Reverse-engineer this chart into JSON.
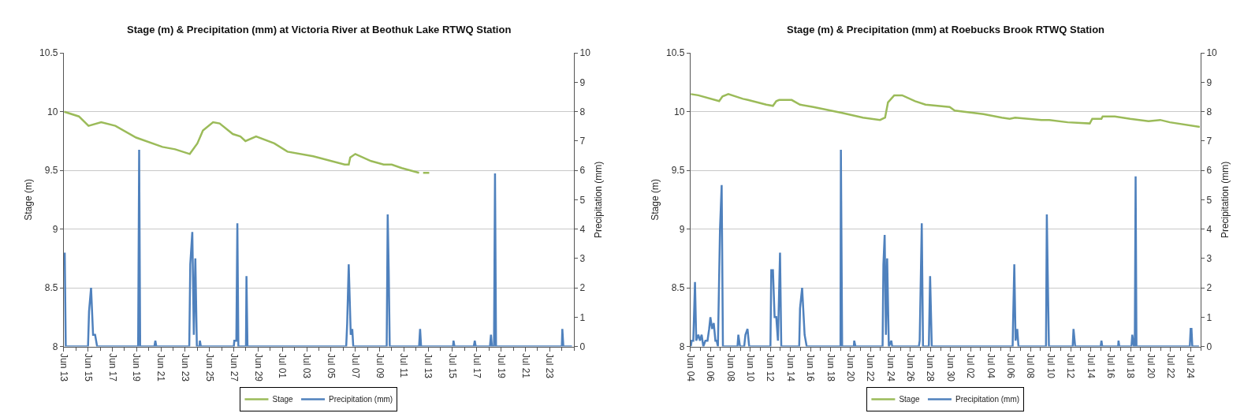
{
  "chart_data": [
    {
      "type": "line",
      "title": "Stage (m) & Precipitation (mm) at Victoria River at Beothuk Lake RTWQ Station",
      "ylabel": "Stage (m)",
      "y2label": "Precipitation (mm)",
      "xlim": [
        "--06-13",
        "--07-25"
      ],
      "xticks": [
        {
          "value": "--06-13",
          "label": "Jun 13"
        },
        {
          "value": "--06-15",
          "label": "Jun 15"
        },
        {
          "value": "--06-17",
          "label": "Jun 17"
        },
        {
          "value": "--06-19",
          "label": "Jun 19"
        },
        {
          "value": "--06-21",
          "label": "Jun 21"
        },
        {
          "value": "--06-23",
          "label": "Jun 23"
        },
        {
          "value": "--06-25",
          "label": "Jun 25"
        },
        {
          "value": "--06-27",
          "label": "Jun 27"
        },
        {
          "value": "--06-29",
          "label": "Jun 29"
        },
        {
          "value": "--07-01",
          "label": "Jul 01"
        },
        {
          "value": "--07-03",
          "label": "Jul 03"
        },
        {
          "value": "--07-05",
          "label": "Jul 05"
        },
        {
          "value": "--07-07",
          "label": "Jul 07"
        },
        {
          "value": "--07-09",
          "label": "Jul 09"
        },
        {
          "value": "--07-11",
          "label": "Jul 11"
        },
        {
          "value": "--07-13",
          "label": "Jul 13"
        },
        {
          "value": "--07-15",
          "label": "Jul 15"
        },
        {
          "value": "--07-17",
          "label": "Jul 17"
        },
        {
          "value": "--07-19",
          "label": "Jul 19"
        },
        {
          "value": "--07-21",
          "label": "Jul 21"
        },
        {
          "value": "--07-23",
          "label": "Jul 23"
        }
      ],
      "ylim": [
        8,
        10.5
      ],
      "yticks": [
        8,
        8.5,
        9,
        9.5,
        10,
        10.5
      ],
      "y2lim": [
        0,
        10
      ],
      "y2ticks": [
        0,
        1,
        2,
        3,
        4,
        5,
        6,
        7,
        8,
        9,
        10
      ],
      "grid": "y",
      "legend": "bottom",
      "series": [
        {
          "name": "Stage",
          "color": "#9bbb59",
          "x": [
            "--06-13T01:00",
            "--06-14T06:00",
            "--06-15T01:00",
            "--06-16T02:00",
            "--06-17T06:00",
            "--06-18T23:00",
            "--06-21T03:00",
            "--06-22T04:00",
            "--06-23T09:00",
            "--06-24T00:00",
            "--06-24T11:00",
            "--06-25T07:00",
            "--06-25T20:00",
            "--06-26T22:00",
            "--06-27T13:00",
            "--06-27T23:00",
            "--06-28T20:00",
            "--06-30T08:00",
            "--07-01T10:00",
            "--07-03T13:00",
            "--07-06T03:00",
            "--07-06T11:00",
            "--07-06T14:00",
            "--07-07T00:00",
            "--07-08T07:00",
            "--07-09T08:00",
            "--07-10T00:00",
            "--07-10T20:00",
            "--07-12T06:00",
            "--07-12T09:00",
            "--07-12T14:00",
            "--07-13T02:00"
          ],
          "values": [
            10.0,
            9.96,
            9.88,
            9.91,
            9.88,
            9.78,
            9.7,
            9.68,
            9.64,
            9.73,
            9.84,
            9.91,
            9.9,
            9.81,
            9.79,
            9.75,
            9.79,
            9.73,
            9.66,
            9.62,
            9.55,
            9.55,
            9.61,
            9.64,
            9.58,
            9.55,
            9.55,
            9.52,
            9.48,
            null,
            9.48,
            9.48
          ]
        },
        {
          "name": "Precipitation (mm)",
          "color": "#4f81bd",
          "axis": "y2",
          "x": [
            "--06-13T02:00",
            "--06-13T04:00",
            "--06-15T00:00",
            "--06-15T02:00",
            "--06-15T06:00",
            "--06-15T10:00",
            "--06-15T14:00",
            "--06-15T18:00",
            "--06-19T03:00",
            "--06-19T05:00",
            "--06-19T07:00",
            "--06-20T11:00",
            "--06-20T13:00",
            "--06-20T15:00",
            "--06-23T08:00",
            "--06-23T10:00",
            "--06-23T14:00",
            "--06-23T17:00",
            "--06-23T20:00",
            "--06-23T23:00",
            "--06-24T04:00",
            "--06-24T05:00",
            "--06-24T07:00",
            "--06-27T00:00",
            "--06-27T01:00",
            "--06-27T05:00",
            "--06-27T07:00",
            "--06-27T09:00",
            "--06-28T00:00",
            "--06-28T01:00",
            "--06-28T03:00",
            "--07-06T06:00",
            "--07-06T08:00",
            "--07-06T11:00",
            "--07-06T15:00",
            "--07-06T18:00",
            "--07-06T20:00",
            "--07-09T14:00",
            "--07-09T16:00",
            "--07-09T18:00",
            "--07-09T20:00",
            "--07-12T06:00",
            "--07-12T08:00",
            "--07-12T10:00",
            "--07-15T01:00",
            "--07-15T02:00",
            "--07-15T04:00",
            "--07-16T18:00",
            "--07-16T20:00",
            "--07-16T22:00",
            "--07-18T02:00",
            "--07-18T04:00",
            "--07-18T06:00",
            "--07-18T10:00",
            "--07-18T12:00",
            "--07-18T14:00",
            "--07-24T00:00",
            "--07-24T01:00",
            "--07-24T03:00",
            "--07-24T20:00"
          ],
          "values": [
            3.2,
            0,
            0,
            1.2,
            2.0,
            0.4,
            0.4,
            0,
            0,
            6.7,
            0,
            0,
            0.2,
            0,
            0,
            2.8,
            3.9,
            0.4,
            3.0,
            0,
            0,
            0.2,
            0,
            0,
            0.2,
            0.2,
            4.2,
            0,
            0,
            2.4,
            0,
            0,
            0.8,
            2.8,
            0.4,
            0.6,
            0,
            0,
            4.5,
            2.6,
            0,
            0,
            0.6,
            0,
            0,
            0.2,
            0,
            0,
            0.2,
            0,
            0,
            0.4,
            0,
            0,
            5.9,
            0,
            0,
            0.6,
            0,
            0
          ]
        }
      ]
    },
    {
      "type": "line",
      "title": "Stage (m) & Precipitation (mm) at Roebucks Brook RTWQ Station",
      "ylabel": "Stage (m)",
      "y2label": "Precipitation (mm)",
      "xlim": [
        "--06-04",
        "--07-25"
      ],
      "xticks": [
        {
          "value": "--06-04",
          "label": "Jun 04"
        },
        {
          "value": "--06-06",
          "label": "Jun 06"
        },
        {
          "value": "--06-08",
          "label": "Jun 08"
        },
        {
          "value": "--06-10",
          "label": "Jun 10"
        },
        {
          "value": "--06-12",
          "label": "Jun 12"
        },
        {
          "value": "--06-14",
          "label": "Jun 14"
        },
        {
          "value": "--06-16",
          "label": "Jun 16"
        },
        {
          "value": "--06-18",
          "label": "Jun 18"
        },
        {
          "value": "--06-20",
          "label": "Jun 20"
        },
        {
          "value": "--06-22",
          "label": "Jun 22"
        },
        {
          "value": "--06-24",
          "label": "Jun 24"
        },
        {
          "value": "--06-26",
          "label": "Jun 26"
        },
        {
          "value": "--06-28",
          "label": "Jun 28"
        },
        {
          "value": "--06-30",
          "label": "Jun 30"
        },
        {
          "value": "--07-02",
          "label": "Jul 02"
        },
        {
          "value": "--07-04",
          "label": "Jul 04"
        },
        {
          "value": "--07-06",
          "label": "Jul 06"
        },
        {
          "value": "--07-08",
          "label": "Jul 08"
        },
        {
          "value": "--07-10",
          "label": "Jul 10"
        },
        {
          "value": "--07-12",
          "label": "Jul 12"
        },
        {
          "value": "--07-14",
          "label": "Jul 14"
        },
        {
          "value": "--07-16",
          "label": "Jul 16"
        },
        {
          "value": "--07-18",
          "label": "Jul 18"
        },
        {
          "value": "--07-20",
          "label": "Jul 20"
        },
        {
          "value": "--07-22",
          "label": "Jul 22"
        },
        {
          "value": "--07-24",
          "label": "Jul 24"
        }
      ],
      "ylim": [
        8,
        10.5
      ],
      "yticks": [
        8,
        8.5,
        9,
        9.5,
        10,
        10.5
      ],
      "y2lim": [
        0,
        10
      ],
      "y2ticks": [
        0,
        1,
        2,
        3,
        4,
        5,
        6,
        7,
        8,
        9,
        10
      ],
      "grid": "y",
      "legend": "bottom",
      "series": [
        {
          "name": "Stage",
          "color": "#9bbb59",
          "x": [
            "--06-04T01:00",
            "--06-04T19:00",
            "--06-06T21:00",
            "--06-07T05:00",
            "--06-07T19:00",
            "--06-09T06:00",
            "--06-09T18:00",
            "--06-11T14:00",
            "--06-12T06:00",
            "--06-12T14:00",
            "--06-12T21:00",
            "--06-14T03:00",
            "--06-14T23:00",
            "--06-16T07:00",
            "--06-19T04:00",
            "--06-21T06:00",
            "--06-22T23:00",
            "--06-23T11:00",
            "--06-23T18:00",
            "--06-24T09:00",
            "--06-25T04:00",
            "--06-26T11:00",
            "--06-27T12:00",
            "--06-29T22:00",
            "--06-30T10:00",
            "--07-03T07:00",
            "--07-05T03:00",
            "--07-05T22:00",
            "--07-06T11:00",
            "--07-09T02:00",
            "--07-09T21:00",
            "--07-11T17:00",
            "--07-13T22:00",
            "--07-14T04:00",
            "--07-15T02:00",
            "--07-15T05:00",
            "--07-16T10:00",
            "--07-17T23:00",
            "--07-19T19:00",
            "--07-20T23:00",
            "--07-21T22:00",
            "--07-24T22:00"
          ],
          "values": [
            10.15,
            10.14,
            10.09,
            10.13,
            10.15,
            10.11,
            10.1,
            10.06,
            10.05,
            10.09,
            10.1,
            10.1,
            10.06,
            10.04,
            9.99,
            9.95,
            9.93,
            9.95,
            10.08,
            10.14,
            10.14,
            10.09,
            10.06,
            10.04,
            10.01,
            9.98,
            9.95,
            9.94,
            9.95,
            9.93,
            9.93,
            9.91,
            9.9,
            9.94,
            9.94,
            9.96,
            9.96,
            9.94,
            9.92,
            9.93,
            9.91,
            9.87
          ]
        },
        {
          "name": "Precipitation (mm)",
          "color": "#4f81bd",
          "axis": "y2",
          "x": [
            "--06-04T01:00",
            "--06-04T03:00",
            "--06-04T07:00",
            "--06-04T11:00",
            "--06-04T14:00",
            "--06-04T19:00",
            "--06-04T23:00",
            "--06-05T03:00",
            "--06-05T07:00",
            "--06-05T12:00",
            "--06-05T17:00",
            "--06-05T21:00",
            "--06-06T00:00",
            "--06-06T04:00",
            "--06-06T08:00",
            "--06-06T12:00",
            "--06-06T15:00",
            "--06-06T18:00",
            "--06-06T23:00",
            "--06-07T03:00",
            "--06-07T06:00",
            "--06-08T17:00",
            "--06-08T19:00",
            "--06-08T23:00",
            "--06-09T09:00",
            "--06-09T12:00",
            "--06-09T17:00",
            "--06-09T21:00",
            "--06-12T00:00",
            "--06-12T02:00",
            "--06-12T06:00",
            "--06-12T10:00",
            "--06-12T14:00",
            "--06-12T18:00",
            "--06-12T23:00",
            "--06-13T02:00",
            "--06-14T21:00",
            "--06-14T23:00",
            "--06-15T04:00",
            "--06-15T10:00",
            "--06-15T15:00",
            "--06-19T00:00",
            "--06-19T01:00",
            "--06-19T04:00",
            "--06-20T08:00",
            "--06-20T09:00",
            "--06-20T12:00",
            "--06-23T05:00",
            "--06-23T07:00",
            "--06-23T10:00",
            "--06-23T13:00",
            "--06-23T16:00",
            "--06-23T20:00",
            "--06-24T02:00",
            "--06-24T04:00",
            "--06-26T20:00",
            "--06-26T22:00",
            "--06-27T03:00",
            "--06-27T06:00",
            "--06-27T20:00",
            "--06-27T23:00",
            "--06-28T03:00",
            "--07-06T05:00",
            "--07-06T06:00",
            "--07-06T09:00",
            "--07-06T12:00",
            "--07-06T16:00",
            "--07-06T19:00",
            "--07-09T13:00",
            "--07-09T15:00",
            "--07-09T17:00",
            "--07-09T20:00",
            "--07-12T05:00",
            "--07-12T07:00",
            "--07-12T11:00",
            "--07-15T00:00",
            "--07-15T02:00",
            "--07-15T04:00",
            "--07-16T18:00",
            "--07-16T19:00",
            "--07-16T21:00",
            "--07-18T02:00",
            "--07-18T04:00",
            "--07-18T08:00",
            "--07-18T10:00",
            "--07-18T12:00",
            "--07-18T14:00",
            "--07-23T22:00",
            "--07-24T00:00",
            "--07-24T02:00",
            "--07-24T04:00",
            "--07-24T20:00"
          ],
          "values": [
            0,
            0.2,
            0.2,
            2.2,
            0.2,
            0.4,
            0.2,
            0.4,
            0,
            0.2,
            0.2,
            0.6,
            1.0,
            0.6,
            0.8,
            0.2,
            0.2,
            0,
            4.0,
            5.5,
            0,
            0,
            0.4,
            0,
            0,
            0.4,
            0.6,
            0,
            0,
            2.6,
            2.6,
            1.0,
            1.0,
            0.2,
            3.2,
            0,
            0,
            1.3,
            2.0,
            0.4,
            0,
            0,
            6.7,
            0,
            0,
            0.2,
            0,
            0,
            2.8,
            3.8,
            0.4,
            3.0,
            0,
            0.2,
            0,
            0,
            0.2,
            4.2,
            0,
            0,
            2.4,
            0,
            0,
            0.8,
            2.8,
            0.2,
            0.6,
            0,
            0,
            4.5,
            2.6,
            0,
            0,
            0.6,
            0,
            0,
            0.2,
            0,
            0,
            0.2,
            0,
            0,
            0.4,
            0,
            0,
            5.8,
            0,
            0,
            0.6,
            0.6,
            0,
            0
          ]
        }
      ]
    }
  ]
}
